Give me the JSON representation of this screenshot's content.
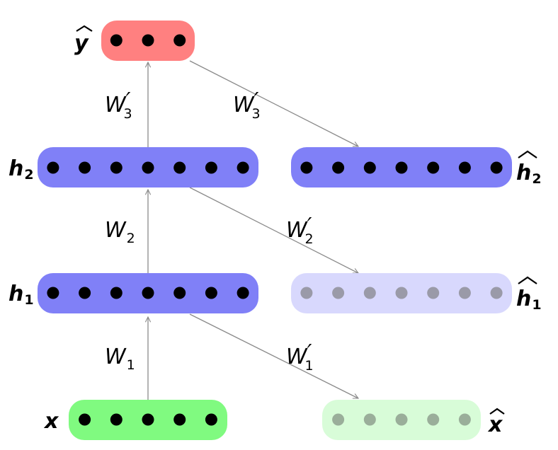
{
  "layers": {
    "y_hat": {
      "label": "y",
      "hat": true,
      "fill": "#ff8080",
      "dot": "#000000",
      "count": 3
    },
    "h2": {
      "label": "h",
      "sub": "2",
      "fill": "#8080f7",
      "dot": "#000000",
      "count": 7
    },
    "h2_hat": {
      "label": "h",
      "sub": "2",
      "hat": true,
      "fill": "#8080f7",
      "dot": "#000000",
      "count": 7
    },
    "h1": {
      "label": "h",
      "sub": "1",
      "fill": "#8080f7",
      "dot": "#000000",
      "count": 7
    },
    "h1_hat": {
      "label": "h",
      "sub": "1",
      "hat": true,
      "fill": "#d8d8fd",
      "dot": "#9a9aa8",
      "count": 7
    },
    "x": {
      "label": "x",
      "fill": "#80fa80",
      "dot": "#000000",
      "count": 5
    },
    "x_hat": {
      "label": "x",
      "hat": true,
      "fill": "#d8fcd8",
      "dot": "#9aae9a",
      "count": 5
    }
  },
  "weights": {
    "w1": {
      "base": "W",
      "sub": "1",
      "prime": ""
    },
    "w1_prime": {
      "base": "W",
      "sub": "1",
      "prime": "′"
    },
    "w2": {
      "base": "W",
      "sub": "2",
      "prime": ""
    },
    "w2_prime": {
      "base": "W",
      "sub": "2",
      "prime": "′"
    },
    "w3_prime_up": {
      "base": "W",
      "sub": "3",
      "prime": "′"
    },
    "w3_prime_side": {
      "base": "W",
      "sub": "3",
      "prime": "′"
    }
  },
  "edge_color": "#8a8a8a"
}
